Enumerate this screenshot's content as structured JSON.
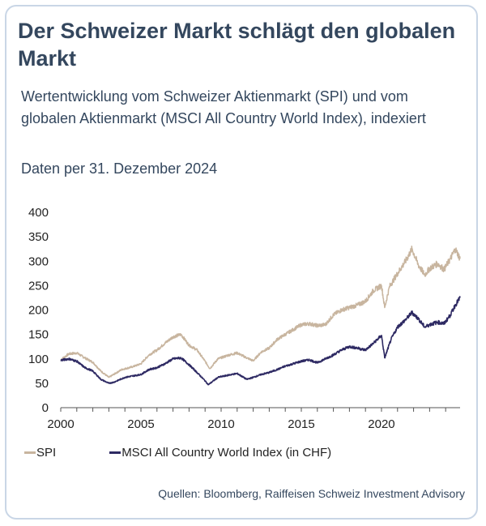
{
  "header": {
    "title": "Der Schweizer Markt schlägt den globalen Markt",
    "subtitle": "Wertentwicklung vom Schweizer Aktienmarkt (SPI) und vom globalen Aktienmarkt (MSCI All Country World Index), indexiert",
    "date_note": "Daten per 31. Dezember 2024"
  },
  "footer": {
    "source": "Quellen: Bloomberg, Raiffeisen Schweiz Investment Advisory"
  },
  "colors": {
    "spi": "#c8b59f",
    "msci": "#2e2a63",
    "title": "#34475e",
    "axis": "#555555",
    "card_border": "#c9d6e6"
  },
  "chart_data": {
    "type": "line",
    "title": "",
    "xlabel": "",
    "ylabel": "",
    "xlim": [
      2000,
      2024.9
    ],
    "ylim": [
      0,
      400
    ],
    "x_ticks": [
      2000,
      2005,
      2010,
      2015,
      2020
    ],
    "y_ticks": [
      0,
      50,
      100,
      150,
      200,
      250,
      300,
      350,
      400
    ],
    "grid": false,
    "legend": "bottom-left",
    "series": [
      {
        "name": "SPI",
        "color": "#c8b59f",
        "x": [
          2000.0,
          2000.5,
          2001.0,
          2001.5,
          2002.0,
          2002.5,
          2003.0,
          2003.3,
          2003.8,
          2004.5,
          2005.0,
          2005.5,
          2006.0,
          2006.5,
          2007.0,
          2007.5,
          2008.0,
          2008.5,
          2009.0,
          2009.3,
          2009.8,
          2010.5,
          2011.0,
          2011.6,
          2012.0,
          2012.5,
          2013.0,
          2013.5,
          2014.0,
          2014.5,
          2015.0,
          2015.5,
          2016.0,
          2016.5,
          2017.0,
          2017.5,
          2018.0,
          2018.5,
          2019.0,
          2019.5,
          2020.0,
          2020.2,
          2020.5,
          2021.0,
          2021.5,
          2021.9,
          2022.3,
          2022.7,
          2023.0,
          2023.5,
          2023.9,
          2024.3,
          2024.6,
          2024.9
        ],
        "values": [
          98,
          110,
          112,
          102,
          93,
          75,
          62,
          68,
          78,
          84,
          90,
          108,
          118,
          132,
          145,
          150,
          128,
          118,
          95,
          80,
          100,
          108,
          112,
          102,
          96,
          114,
          122,
          140,
          150,
          160,
          170,
          172,
          168,
          170,
          190,
          200,
          205,
          210,
          218,
          240,
          250,
          205,
          248,
          275,
          300,
          325,
          292,
          272,
          285,
          295,
          283,
          305,
          325,
          305
        ]
      },
      {
        "name": "MSCI All Country World Index (in CHF)",
        "color": "#2e2a63",
        "x": [
          2000.0,
          2000.5,
          2001.0,
          2001.5,
          2002.0,
          2002.5,
          2003.0,
          2003.3,
          2004.0,
          2005.0,
          2005.5,
          2006.0,
          2006.5,
          2007.0,
          2007.5,
          2008.0,
          2008.5,
          2009.0,
          2009.2,
          2009.8,
          2010.5,
          2011.0,
          2011.6,
          2012.0,
          2012.5,
          2013.0,
          2013.5,
          2014.0,
          2014.5,
          2015.0,
          2015.5,
          2016.0,
          2016.5,
          2017.0,
          2017.5,
          2018.0,
          2018.5,
          2019.0,
          2019.5,
          2020.0,
          2020.2,
          2020.6,
          2021.0,
          2021.5,
          2021.9,
          2022.3,
          2022.7,
          2023.0,
          2023.5,
          2023.9,
          2024.3,
          2024.6,
          2024.9
        ],
        "values": [
          97,
          100,
          95,
          82,
          75,
          58,
          50,
          52,
          62,
          68,
          78,
          82,
          90,
          100,
          102,
          88,
          72,
          55,
          47,
          62,
          67,
          70,
          58,
          62,
          68,
          72,
          78,
          85,
          90,
          95,
          98,
          92,
          100,
          108,
          118,
          125,
          122,
          118,
          132,
          148,
          102,
          140,
          165,
          180,
          195,
          182,
          165,
          170,
          175,
          172,
          190,
          210,
          225
        ]
      }
    ]
  }
}
